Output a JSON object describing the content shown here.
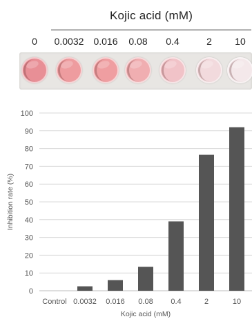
{
  "figure": {
    "top_title": "Kojic acid (mM)",
    "plate_labels": [
      "0",
      "0.0032",
      "0.016",
      "0.08",
      "0.4",
      "2",
      "10"
    ],
    "well_colors": [
      "#e88f96",
      "#ee9c9f",
      "#ef9ea1",
      "#f0aeb1",
      "#f1c3c8",
      "#f2dadd",
      "#f4e8ea"
    ]
  },
  "chart_data": {
    "type": "bar",
    "categories": [
      "Control",
      "0.0032",
      "0.016",
      "0.08",
      "0.4",
      "2",
      "10"
    ],
    "values": [
      0,
      2.5,
      6,
      13.5,
      39,
      76.5,
      92
    ],
    "title": "",
    "xlabel": "Kojic acid (mM)",
    "ylabel": "Inhibition rate (%)",
    "ylim": [
      0,
      100
    ],
    "yticks": [
      0,
      10,
      20,
      30,
      40,
      50,
      60,
      70,
      80,
      90,
      100
    ],
    "grid": true,
    "bar_color": "#555555",
    "grid_color": "#d8d8d8"
  }
}
